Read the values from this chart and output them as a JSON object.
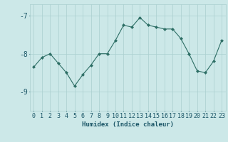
{
  "x": [
    0,
    1,
    2,
    3,
    4,
    5,
    6,
    7,
    8,
    9,
    10,
    11,
    12,
    13,
    14,
    15,
    16,
    17,
    18,
    19,
    20,
    21,
    22,
    23
  ],
  "y": [
    -8.35,
    -8.1,
    -8.0,
    -8.25,
    -8.5,
    -8.85,
    -8.55,
    -8.3,
    -8.0,
    -8.0,
    -7.65,
    -7.25,
    -7.3,
    -7.05,
    -7.25,
    -7.3,
    -7.35,
    -7.35,
    -7.6,
    -8.0,
    -8.45,
    -8.5,
    -8.2,
    -7.65
  ],
  "xlabel": "Humidex (Indice chaleur)",
  "ylabel": "",
  "ylim": [
    -9.5,
    -6.7
  ],
  "yticks": [
    -9,
    -8,
    -7
  ],
  "xlim": [
    -0.5,
    23.5
  ],
  "bg_color": "#cce8e8",
  "line_color": "#2d6e65",
  "marker_color": "#2d6e65",
  "grid_color": "#aacfcf",
  "text_color": "#1a5566",
  "xlabel_fontsize": 6.5,
  "tick_fontsize": 6,
  "ytick_fontsize": 7
}
